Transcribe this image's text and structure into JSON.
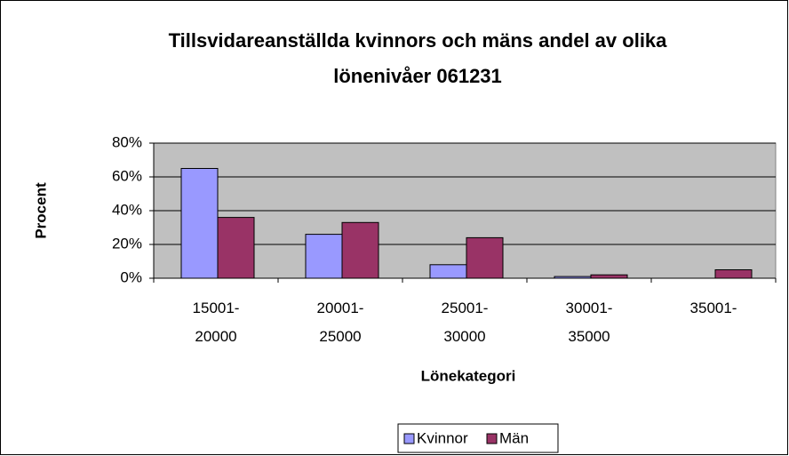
{
  "chart_data": {
    "type": "bar",
    "title": "Tillsvidareanställda kvinnors och mäns andel av olika lönenivåer 061231",
    "xlabel": "Lönekategori",
    "ylabel": "Procent",
    "categories": [
      "15001-20000",
      "20001-25000",
      "25001-30000",
      "30001-35000",
      "35001-"
    ],
    "series": [
      {
        "name": "Kvinnor",
        "color": "#9999ff",
        "values": [
          65,
          26,
          8,
          1,
          0
        ]
      },
      {
        "name": "Män",
        "color": "#993366",
        "values": [
          36,
          33,
          24,
          2,
          5
        ]
      }
    ],
    "ylim": [
      0,
      80
    ],
    "yticks": [
      {
        "value": 0,
        "label": "0%"
      },
      {
        "value": 20,
        "label": "20%"
      },
      {
        "value": 40,
        "label": "40%"
      },
      {
        "value": 60,
        "label": "60%"
      },
      {
        "value": 80,
        "label": "80%"
      }
    ],
    "grid": true,
    "legend": "bottom"
  }
}
